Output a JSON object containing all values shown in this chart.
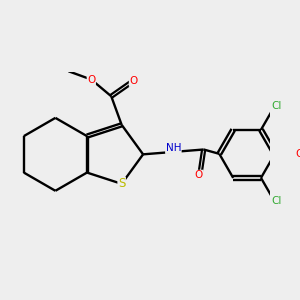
{
  "background_color": "#eeeeee",
  "bond_color": "#000000",
  "atom_colors": {
    "S": "#bbbb00",
    "O": "#ff0000",
    "N": "#0000cc",
    "Cl": "#33aa33",
    "H_color": "#555555"
  },
  "figsize": [
    3.0,
    3.0
  ],
  "dpi": 100
}
